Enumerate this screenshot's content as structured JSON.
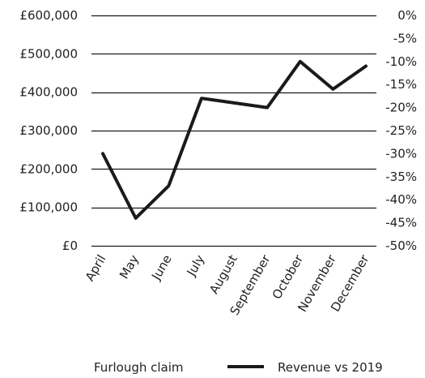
{
  "chart_data": {
    "type": "line",
    "categories": [
      "April",
      "May",
      "June",
      "July",
      "August",
      "September",
      "October",
      "November",
      "December"
    ],
    "left_axis": {
      "min": 0,
      "max": 600000,
      "ticks": [
        0,
        100000,
        200000,
        300000,
        400000,
        500000,
        600000
      ],
      "tick_labels": [
        "£0",
        "£100,000",
        "£200,000",
        "£300,000",
        "£400,000",
        "£500,000",
        "£600,000"
      ]
    },
    "right_axis": {
      "min": -50,
      "max": 0,
      "ticks": [
        0,
        -5,
        -10,
        -15,
        -20,
        -25,
        -30,
        -35,
        -40,
        -45,
        -50
      ],
      "tick_labels": [
        "0%",
        "-5%",
        "-10%",
        "-15%",
        "-20%",
        "-25%",
        "-30%",
        "-35%",
        "-40%",
        "-45%",
        "-50%"
      ]
    },
    "series": [
      {
        "name": "Furlough claim",
        "type": "bar",
        "axis": "left",
        "values": [
          null,
          null,
          null,
          null,
          null,
          null,
          null,
          null,
          null
        ]
      },
      {
        "name": "Revenue vs 2019",
        "type": "line",
        "axis": "right",
        "values": [
          -30,
          -44,
          -37,
          -18,
          -19,
          -20,
          -10,
          -16,
          -11
        ]
      }
    ],
    "legend": {
      "position": "bottom",
      "items": [
        "Furlough claim",
        "Revenue vs 2019"
      ]
    },
    "grid": true,
    "colors": {
      "line": "#1a1a1a",
      "grid": "#1a1a1a",
      "text": "#222222"
    }
  }
}
